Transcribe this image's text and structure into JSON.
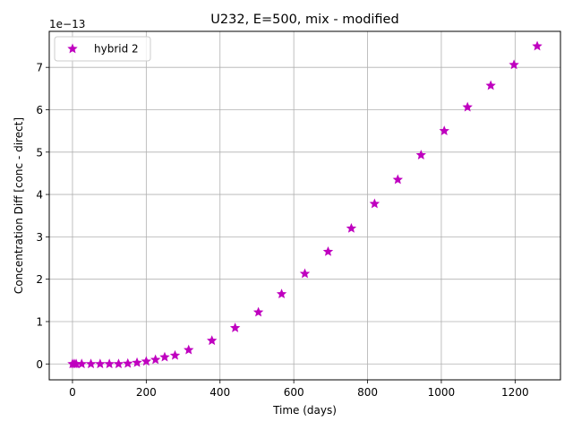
{
  "chart_data": {
    "type": "scatter",
    "title": "U232, E=500, mix - modified",
    "xlabel": "Time (days)",
    "ylabel": "Concentration Diff [conc - direct]",
    "offset_label": "1e−13",
    "xlim": [
      -63,
      1323
    ],
    "ylim": [
      -0.375,
      7.85
    ],
    "xticks": [
      0,
      200,
      400,
      600,
      800,
      1000,
      1200
    ],
    "yticks": [
      0,
      1,
      2,
      3,
      4,
      5,
      6,
      7
    ],
    "xtick_labels": [
      "0",
      "200",
      "400",
      "600",
      "800",
      "1000",
      "1200"
    ],
    "ytick_labels": [
      "0",
      "1",
      "2",
      "3",
      "4",
      "5",
      "6",
      "7"
    ],
    "grid": true,
    "legend_position": "top-left",
    "series": [
      {
        "name": "hybrid 2",
        "marker": "star",
        "color": "#bf00bf",
        "x": [
          0,
          5,
          10,
          25,
          50,
          75,
          100,
          125,
          150,
          175,
          200,
          225,
          250,
          278,
          315,
          378,
          441,
          504,
          567,
          630,
          693,
          756,
          819,
          882,
          945,
          1008,
          1071,
          1134,
          1197,
          1260
        ],
        "y": [
          0,
          0,
          0,
          0,
          0,
          0,
          0,
          0,
          0.01,
          0.03,
          0.06,
          0.1,
          0.16,
          0.2,
          0.33,
          0.55,
          0.85,
          1.22,
          1.65,
          2.13,
          2.65,
          3.2,
          3.78,
          4.35,
          4.93,
          5.5,
          6.06,
          6.57,
          7.06,
          7.5
        ]
      }
    ]
  }
}
